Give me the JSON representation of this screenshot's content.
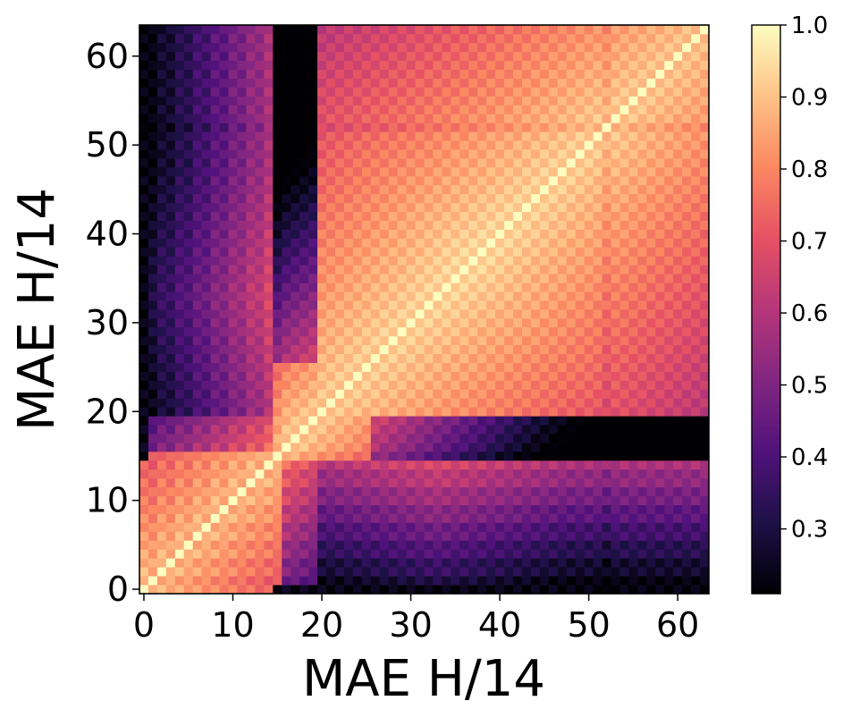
{
  "chart_data": {
    "type": "heatmap",
    "title": "",
    "xlabel": "MAE H/14",
    "ylabel": "MAE H/14",
    "n_rows": 64,
    "n_cols": 64,
    "xlim": [
      0,
      63
    ],
    "ylim": [
      0,
      63
    ],
    "x_ticks": [
      0,
      10,
      20,
      30,
      40,
      50,
      60
    ],
    "y_ticks": [
      0,
      10,
      20,
      30,
      40,
      50,
      60
    ],
    "colormap": "magma",
    "colorbar": {
      "min": 0.21,
      "max": 1.0,
      "ticks": [
        0.3,
        0.4,
        0.5,
        0.6,
        0.7,
        0.8,
        0.9,
        1.0
      ],
      "tick_labels": [
        "0.3",
        "0.4",
        "0.5",
        "0.6",
        "0.7",
        "0.8",
        "0.9",
        "1.0"
      ]
    },
    "color_stops": [
      "#000004",
      "#1d1147",
      "#51127c",
      "#822681",
      "#b63679",
      "#e65164",
      "#fb8861",
      "#fec287",
      "#fcfdbf"
    ],
    "description_values": {
      "diagonal": 1.0,
      "early_block_0_15": 0.83,
      "late_block_20_63": 0.85,
      "col0_vs_late": 0.25,
      "row_early_vs_late_min": 0.22
    }
  }
}
